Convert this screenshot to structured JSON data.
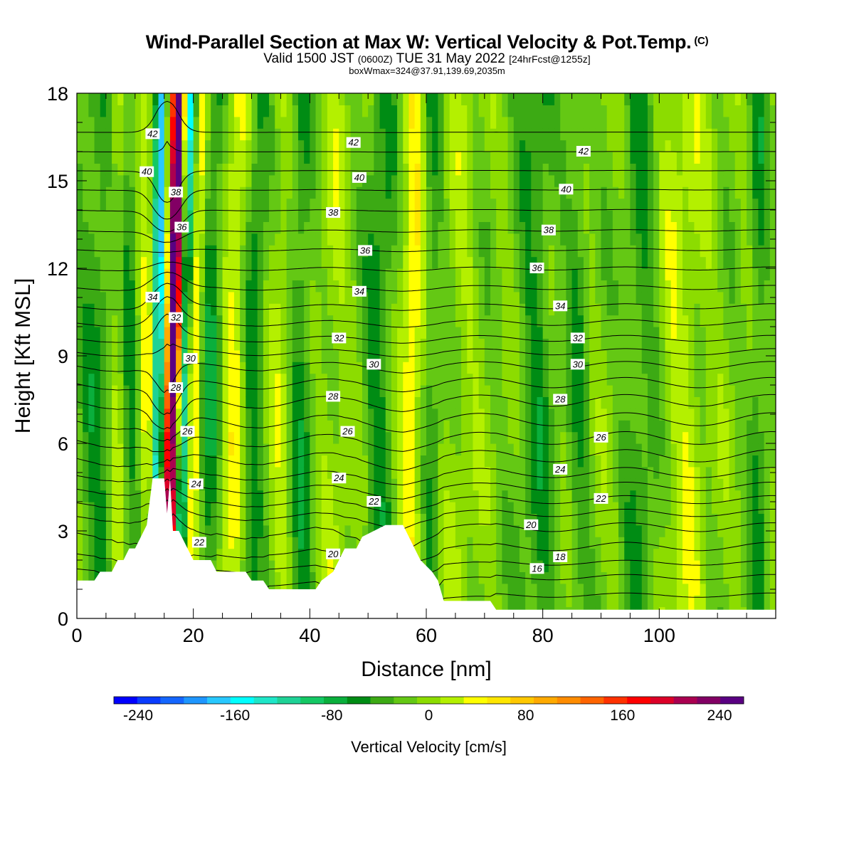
{
  "title": {
    "main": "Wind-Parallel Section at Max W: Vertical Velocity & Pot.Temp.",
    "copyright": "(C)",
    "valid_prefix": "Valid 1500 JST",
    "valid_utc": "(0600Z)",
    "valid_date": "TUE 31 May 2022",
    "forecast": "[24hrFcst@1255z]",
    "box": "boxWmax=324@37.91,139.69,2035m"
  },
  "chart_data": {
    "type": "heatmap",
    "xlabel": "Distance [nm]",
    "ylabel": "Height [Kft MSL]",
    "xlim": [
      0,
      120
    ],
    "ylim": [
      0,
      18
    ],
    "x_ticks": [
      "0",
      "20",
      "40",
      "60",
      "80",
      "100"
    ],
    "y_ticks": [
      "0",
      "3",
      "6",
      "9",
      "12",
      "15",
      "18"
    ],
    "colorbar": {
      "title": "Vertical Velocity [cm/s]",
      "tick_labels": [
        "-240",
        "-160",
        "-80",
        "0",
        "80",
        "160",
        "240"
      ],
      "min": -260,
      "max": 260,
      "step": 20,
      "colors": [
        "#0000ff",
        "#0a3cff",
        "#1466ff",
        "#1e96ff",
        "#28c8ff",
        "#00ffff",
        "#1ee6c8",
        "#1ed296",
        "#14c864",
        "#0aaf3c",
        "#008c14",
        "#3caa14",
        "#64c814",
        "#8cdc00",
        "#b4f000",
        "#ffff00",
        "#ffe600",
        "#ffc800",
        "#ffaa00",
        "#ff8c00",
        "#ff6400",
        "#ff3200",
        "#ff0000",
        "#dc0028",
        "#aa0050",
        "#820064",
        "#5a0082"
      ]
    },
    "velocity_features": [
      {
        "x": 16.5,
        "w": 1.2,
        "amp": 280,
        "lean": 0.1
      },
      {
        "x": 18.5,
        "w": 0.8,
        "amp": -130,
        "lean": 0.12
      },
      {
        "x": 14.0,
        "w": 0.9,
        "amp": -170,
        "lean": 0.05
      },
      {
        "x": 20.5,
        "w": 1.0,
        "amp": 60,
        "lean": 0.12
      },
      {
        "x": 12.0,
        "w": 1.2,
        "amp": 40,
        "lean": 0.0
      },
      {
        "x": 9.0,
        "w": 1.5,
        "amp": -40,
        "lean": 0.0
      },
      {
        "x": 3.5,
        "w": 3.0,
        "amp": -40,
        "lean": 0.0
      },
      {
        "x": 7.0,
        "w": 1.5,
        "amp": 30,
        "lean": 0.0
      },
      {
        "x": 23.0,
        "w": 1.8,
        "amp": -55,
        "lean": 0.1
      },
      {
        "x": 27.0,
        "w": 2.0,
        "amp": 45,
        "lean": 0.1
      },
      {
        "x": 30.5,
        "w": 1.8,
        "amp": -50,
        "lean": 0.1
      },
      {
        "x": 35.0,
        "w": 2.0,
        "amp": 25,
        "lean": 0.05
      },
      {
        "x": 38.5,
        "w": 2.0,
        "amp": -45,
        "lean": 0.0
      },
      {
        "x": 44.0,
        "w": 2.5,
        "amp": 20,
        "lean": 0.0
      },
      {
        "x": 52.0,
        "w": 2.5,
        "amp": -45,
        "lean": 0.05
      },
      {
        "x": 57.5,
        "w": 2.0,
        "amp": 55,
        "lean": 0.05
      },
      {
        "x": 61.0,
        "w": 1.5,
        "amp": -35,
        "lean": 0.0
      },
      {
        "x": 66.0,
        "w": 2.5,
        "amp": 15,
        "lean": 0.0
      },
      {
        "x": 79.0,
        "w": 3.0,
        "amp": -40,
        "lean": 0.0
      },
      {
        "x": 86.0,
        "w": 2.0,
        "amp": -30,
        "lean": 0.0
      },
      {
        "x": 97.0,
        "w": 3.0,
        "amp": -35,
        "lean": 0.0
      },
      {
        "x": 104.0,
        "w": 4.0,
        "amp": 30,
        "lean": 0.0
      },
      {
        "x": 117.0,
        "w": 1.5,
        "amp": -40,
        "lean": 0.0
      }
    ],
    "terrain_kft": [
      [
        0,
        1.3
      ],
      [
        3,
        1.3
      ],
      [
        4,
        1.6
      ],
      [
        6,
        1.6
      ],
      [
        7,
        2.0
      ],
      [
        8,
        2.0
      ],
      [
        9,
        2.4
      ],
      [
        10,
        2.4
      ],
      [
        11,
        2.8
      ],
      [
        12,
        3.2
      ],
      [
        13,
        4.8
      ],
      [
        15,
        4.8
      ],
      [
        15.5,
        3.6
      ],
      [
        16,
        4.8
      ],
      [
        16.5,
        3.0
      ],
      [
        17.5,
        3.0
      ],
      [
        19,
        2.4
      ],
      [
        20,
        2.0
      ],
      [
        23,
        2.0
      ],
      [
        24,
        1.6
      ],
      [
        29,
        1.6
      ],
      [
        30,
        1.3
      ],
      [
        32,
        1.3
      ],
      [
        33,
        1.0
      ],
      [
        40,
        1.0
      ],
      [
        41,
        1.0
      ],
      [
        42,
        1.3
      ],
      [
        44,
        1.6
      ],
      [
        45,
        2.0
      ],
      [
        46,
        2.4
      ],
      [
        48,
        2.4
      ],
      [
        49,
        2.8
      ],
      [
        53,
        3.2
      ],
      [
        56,
        3.2
      ],
      [
        57,
        2.8
      ],
      [
        58,
        2.4
      ],
      [
        59,
        2.0
      ],
      [
        61,
        1.6
      ],
      [
        62,
        1.3
      ],
      [
        63,
        0.6
      ],
      [
        71,
        0.6
      ],
      [
        72,
        0.3
      ],
      [
        78,
        0.3
      ],
      [
        84,
        0.3
      ],
      [
        90,
        0.3
      ],
      [
        95,
        0.3
      ],
      [
        110,
        0.3
      ],
      [
        120,
        0.3
      ]
    ],
    "theta_contour_levels": [
      16,
      17,
      18,
      19,
      20,
      21,
      22,
      23,
      24,
      25,
      26,
      27,
      28,
      29,
      30,
      31,
      32,
      33,
      34,
      35,
      36,
      37,
      38,
      39,
      40,
      41,
      42,
      43
    ],
    "theta_labels": [
      {
        "t": "42",
        "x": 13.0,
        "y": 16.6
      },
      {
        "t": "40",
        "x": 12.0,
        "y": 15.3
      },
      {
        "t": "38",
        "x": 17.0,
        "y": 14.6
      },
      {
        "t": "36",
        "x": 18.0,
        "y": 13.4
      },
      {
        "t": "34",
        "x": 13.0,
        "y": 11.0
      },
      {
        "t": "32",
        "x": 17.0,
        "y": 10.3
      },
      {
        "t": "30",
        "x": 19.5,
        "y": 8.9
      },
      {
        "t": "28",
        "x": 17.0,
        "y": 7.9
      },
      {
        "t": "26",
        "x": 19.0,
        "y": 6.4
      },
      {
        "t": "24",
        "x": 20.5,
        "y": 4.6
      },
      {
        "t": "22",
        "x": 21.0,
        "y": 2.6
      },
      {
        "t": "42",
        "x": 47.5,
        "y": 16.3
      },
      {
        "t": "40",
        "x": 48.5,
        "y": 15.1
      },
      {
        "t": "38",
        "x": 44.0,
        "y": 13.9
      },
      {
        "t": "36",
        "x": 49.5,
        "y": 12.6
      },
      {
        "t": "34",
        "x": 48.5,
        "y": 11.2
      },
      {
        "t": "32",
        "x": 45.0,
        "y": 9.6
      },
      {
        "t": "30",
        "x": 51.0,
        "y": 8.7
      },
      {
        "t": "28",
        "x": 44.0,
        "y": 7.6
      },
      {
        "t": "26",
        "x": 46.5,
        "y": 6.4
      },
      {
        "t": "24",
        "x": 45.0,
        "y": 4.8
      },
      {
        "t": "22",
        "x": 51.0,
        "y": 4.0
      },
      {
        "t": "20",
        "x": 44.0,
        "y": 2.2
      },
      {
        "t": "42",
        "x": 87.0,
        "y": 16.0
      },
      {
        "t": "40",
        "x": 84.0,
        "y": 14.7
      },
      {
        "t": "38",
        "x": 81.0,
        "y": 13.3
      },
      {
        "t": "36",
        "x": 79.0,
        "y": 12.0
      },
      {
        "t": "34",
        "x": 83.0,
        "y": 10.7
      },
      {
        "t": "32",
        "x": 86.0,
        "y": 9.6
      },
      {
        "t": "30",
        "x": 86.0,
        "y": 8.7
      },
      {
        "t": "28",
        "x": 83.0,
        "y": 7.5
      },
      {
        "t": "26",
        "x": 90.0,
        "y": 6.2
      },
      {
        "t": "24",
        "x": 83.0,
        "y": 5.1
      },
      {
        "t": "22",
        "x": 90.0,
        "y": 4.1
      },
      {
        "t": "20",
        "x": 78.0,
        "y": 3.2
      },
      {
        "t": "18",
        "x": 83.0,
        "y": 2.1
      },
      {
        "t": "16",
        "x": 79.0,
        "y": 1.7
      }
    ]
  }
}
